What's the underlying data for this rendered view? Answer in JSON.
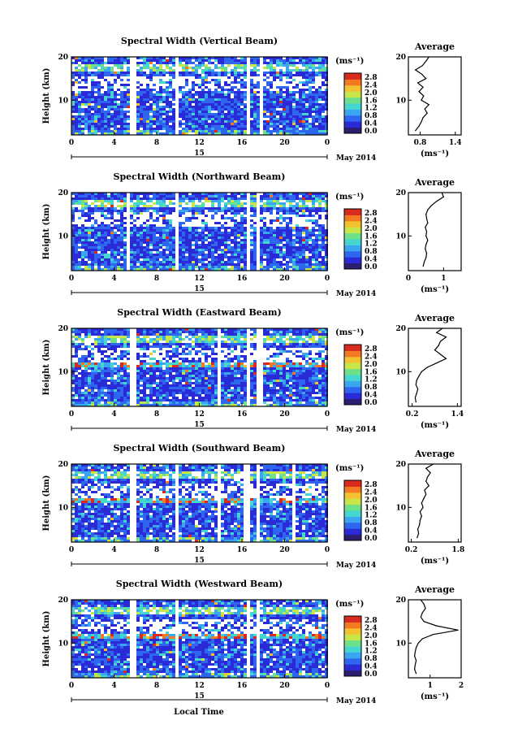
{
  "figure": {
    "xlabel": "Local Time",
    "date_label": "May 2014",
    "day_label": "15",
    "colorbar_unit": "(ms⁻¹)",
    "colorbar_ticks": [
      "2.8",
      "2.4",
      "2.0",
      "1.6",
      "1.2",
      "0.8",
      "0.4",
      "0.0"
    ],
    "height_ylabel": "Height (km)",
    "avg_title": "Average",
    "avg_xlabel": "(ms⁻¹)",
    "colors": [
      "#2b1e6e",
      "#2a2ad6",
      "#2e66f0",
      "#3aa6f2",
      "#46d6d0",
      "#6ee08a",
      "#c8e64a",
      "#f2c230",
      "#f27a22",
      "#d82a1e"
    ]
  },
  "chart_data": [
    {
      "type": "heatmap",
      "title": "Spectral Width (Vertical Beam)",
      "x_ticks": [
        "0",
        "4",
        "8",
        "12",
        "16",
        "20",
        "0"
      ],
      "y_ticks": [
        "20",
        "10"
      ],
      "xlim": [
        0,
        24
      ],
      "ylim": [
        2,
        20
      ],
      "zlim": [
        0,
        3.0
      ],
      "gaps": [
        [
          5.3,
          5.9
        ],
        [
          9.7,
          10.0
        ],
        [
          16.3,
          16.6
        ],
        [
          17.4,
          17.8
        ]
      ],
      "average": {
        "x_ticks": [
          "0.8",
          "1.4"
        ],
        "y_ticks": [
          "20",
          "10"
        ],
        "xlim": [
          0.6,
          1.5
        ],
        "height": [
          3,
          4,
          5,
          6,
          7,
          8,
          9,
          10,
          11,
          12,
          13,
          14,
          15,
          16,
          17,
          18,
          19,
          20
        ],
        "values": [
          0.72,
          0.78,
          0.82,
          0.85,
          0.92,
          0.88,
          0.95,
          0.82,
          0.86,
          0.78,
          0.85,
          0.76,
          0.9,
          0.83,
          0.72,
          0.84,
          0.9,
          0.95
        ]
      }
    },
    {
      "type": "heatmap",
      "title": "Spectral Width (Northward Beam)",
      "x_ticks": [
        "0",
        "4",
        "8",
        "12",
        "16",
        "20",
        "0"
      ],
      "y_ticks": [
        "20",
        "10"
      ],
      "xlim": [
        0,
        24
      ],
      "ylim": [
        2,
        20
      ],
      "zlim": [
        0,
        3.0
      ],
      "gaps": [
        [
          4.9,
          5.3
        ],
        [
          9.7,
          10.0
        ],
        [
          16.2,
          16.5
        ],
        [
          17.2,
          17.5
        ]
      ],
      "average": {
        "x_ticks": [
          "0",
          "1"
        ],
        "y_ticks": [
          "20",
          "10"
        ],
        "xlim": [
          0,
          1.5
        ],
        "height": [
          3,
          4,
          5,
          6,
          7,
          8,
          9,
          10,
          11,
          12,
          13,
          14,
          15,
          16,
          17,
          18,
          19,
          20
        ],
        "values": [
          0.42,
          0.45,
          0.5,
          0.52,
          0.48,
          0.5,
          0.55,
          0.5,
          0.52,
          0.48,
          0.55,
          0.52,
          0.5,
          0.55,
          0.65,
          0.8,
          1.0,
          0.95
        ]
      }
    },
    {
      "type": "heatmap",
      "title": "Spectral Width (Eastward Beam)",
      "x_ticks": [
        "0",
        "4",
        "8",
        "12",
        "16",
        "20",
        "0"
      ],
      "y_ticks": [
        "20",
        "10"
      ],
      "xlim": [
        0,
        24
      ],
      "ylim": [
        2,
        20
      ],
      "zlim": [
        0,
        3.0
      ],
      "gaps": [
        [
          5.3,
          5.9
        ],
        [
          13.6,
          13.9
        ],
        [
          16.2,
          16.6
        ],
        [
          17.3,
          17.7
        ]
      ],
      "average": {
        "x_ticks": [
          "0.2",
          "1.4"
        ],
        "y_ticks": [
          "20",
          "10"
        ],
        "xlim": [
          0.1,
          1.5
        ],
        "height": [
          3,
          4,
          5,
          6,
          7,
          8,
          9,
          10,
          11,
          12,
          13,
          14,
          15,
          16,
          17,
          18,
          19,
          20
        ],
        "values": [
          0.3,
          0.28,
          0.32,
          0.35,
          0.3,
          0.32,
          0.38,
          0.45,
          0.6,
          0.85,
          1.1,
          0.95,
          0.8,
          0.9,
          0.95,
          1.1,
          0.85,
          1.0
        ]
      }
    },
    {
      "type": "heatmap",
      "title": "Spectral Width (Southward Beam)",
      "x_ticks": [
        "0",
        "4",
        "8",
        "12",
        "16",
        "20",
        "0"
      ],
      "y_ticks": [
        "20",
        "10"
      ],
      "xlim": [
        0,
        24
      ],
      "ylim": [
        2,
        20
      ],
      "zlim": [
        0,
        3.0
      ],
      "gaps": [
        [
          5.3,
          5.9
        ],
        [
          9.7,
          10.0
        ],
        [
          13.5,
          13.8
        ],
        [
          16.1,
          16.5
        ],
        [
          17.2,
          17.5
        ],
        [
          20.6,
          20.9
        ]
      ],
      "average": {
        "x_ticks": [
          "0.2",
          "1.8"
        ],
        "y_ticks": [
          "20",
          "10"
        ],
        "xlim": [
          0.1,
          1.9
        ],
        "height": [
          3,
          4,
          5,
          6,
          7,
          8,
          9,
          10,
          11,
          12,
          13,
          14,
          15,
          16,
          17,
          18,
          19,
          20
        ],
        "values": [
          0.4,
          0.45,
          0.42,
          0.48,
          0.5,
          0.55,
          0.5,
          0.6,
          0.55,
          0.62,
          0.7,
          0.65,
          0.8,
          0.7,
          0.75,
          0.85,
          0.7,
          0.95
        ]
      }
    },
    {
      "type": "heatmap",
      "title": "Spectral Width (Westward Beam)",
      "x_ticks": [
        "0",
        "4",
        "8",
        "12",
        "16",
        "20",
        "0"
      ],
      "y_ticks": [
        "20",
        "10"
      ],
      "xlim": [
        0,
        24
      ],
      "ylim": [
        2,
        20
      ],
      "zlim": [
        0,
        3.0
      ],
      "gaps": [
        [
          5.3,
          5.9
        ],
        [
          9.7,
          10.0
        ],
        [
          16.3,
          16.6
        ],
        [
          17.3,
          17.6
        ]
      ],
      "average": {
        "x_ticks": [
          "1",
          "2"
        ],
        "y_ticks": [
          "20",
          "10"
        ],
        "xlim": [
          0.3,
          2.0
        ],
        "height": [
          3,
          4,
          5,
          6,
          7,
          8,
          9,
          10,
          11,
          12,
          13,
          14,
          15,
          16,
          17,
          18,
          19,
          20
        ],
        "values": [
          0.55,
          0.5,
          0.52,
          0.55,
          0.5,
          0.52,
          0.55,
          0.62,
          0.75,
          1.1,
          1.9,
          1.2,
          0.8,
          0.7,
          0.75,
          0.85,
          0.8,
          0.7
        ]
      }
    }
  ]
}
